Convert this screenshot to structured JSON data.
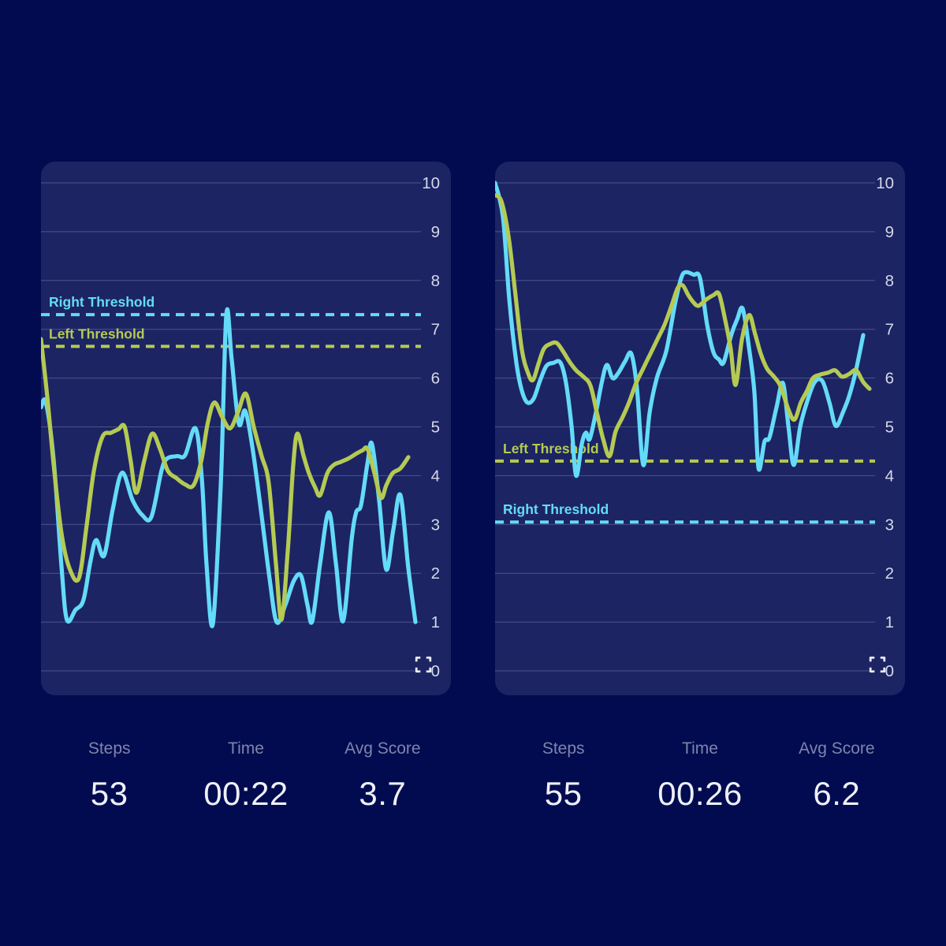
{
  "colors": {
    "page_bg": "#020b50",
    "panel_bg": "#1c2464",
    "grid_line": "rgba(173,181,219,0.33)",
    "tick_label": "#d5d8e8",
    "cyan": "#64dbf8",
    "green": "#b5ca52",
    "stat_label": "#7e85ab",
    "stat_value": "#eef0f7",
    "icon": "#e9ebf4"
  },
  "icons": {
    "bottom_right_of_each_chart": "expand-fullscreen-icon"
  },
  "chart_data": [
    {
      "type": "line",
      "title": "",
      "xlabel": "",
      "ylabel": "",
      "ylim": [
        0,
        10
      ],
      "yticks": [
        0,
        1,
        2,
        3,
        4,
        5,
        6,
        7,
        8,
        9,
        10
      ],
      "grid": true,
      "legend_position": "none",
      "thresholds": [
        {
          "label": "Right Threshold",
          "value": 7.3,
          "color": "#64dbf8"
        },
        {
          "label": "Left Threshold",
          "value": 6.65,
          "color": "#b5ca52"
        }
      ],
      "series": [
        {
          "id": "right",
          "color": "#64dbf8",
          "points": [
            [
              0,
              5.4
            ],
            [
              0.013,
              5.5
            ],
            [
              0.034,
              4.3
            ],
            [
              0.055,
              2.1
            ],
            [
              0.069,
              1.05
            ],
            [
              0.092,
              1.25
            ],
            [
              0.113,
              1.45
            ],
            [
              0.132,
              2.25
            ],
            [
              0.147,
              2.68
            ],
            [
              0.168,
              2.36
            ],
            [
              0.191,
              3.3
            ],
            [
              0.216,
              4.06
            ],
            [
              0.244,
              3.5
            ],
            [
              0.269,
              3.2
            ],
            [
              0.294,
              3.15
            ],
            [
              0.321,
              4.1
            ],
            [
              0.336,
              4.35
            ],
            [
              0.363,
              4.4
            ],
            [
              0.384,
              4.42
            ],
            [
              0.412,
              4.97
            ],
            [
              0.429,
              3.9
            ],
            [
              0.441,
              2.2
            ],
            [
              0.458,
              0.96
            ],
            [
              0.479,
              3.8
            ],
            [
              0.494,
              7.3
            ],
            [
              0.508,
              6.4
            ],
            [
              0.527,
              5.07
            ],
            [
              0.544,
              5.33
            ],
            [
              0.563,
              4.6
            ],
            [
              0.586,
              3.3
            ],
            [
              0.609,
              1.9
            ],
            [
              0.628,
              1.0
            ],
            [
              0.651,
              1.35
            ],
            [
              0.674,
              1.85
            ],
            [
              0.693,
              1.95
            ],
            [
              0.71,
              1.35
            ],
            [
              0.723,
              1.02
            ],
            [
              0.744,
              2.2
            ],
            [
              0.767,
              3.25
            ],
            [
              0.786,
              2.2
            ],
            [
              0.805,
              1.02
            ],
            [
              0.828,
              2.7
            ],
            [
              0.84,
              3.25
            ],
            [
              0.853,
              3.4
            ],
            [
              0.87,
              4.25
            ],
            [
              0.882,
              4.65
            ],
            [
              0.901,
              3.5
            ],
            [
              0.92,
              2.08
            ],
            [
              0.939,
              2.9
            ],
            [
              0.958,
              3.6
            ],
            [
              0.979,
              2.1
            ],
            [
              0.998,
              1.0
            ]
          ]
        },
        {
          "id": "left",
          "color": "#b5ca52",
          "points": [
            [
              0,
              6.8
            ],
            [
              0.017,
              5.6
            ],
            [
              0.034,
              4.2
            ],
            [
              0.055,
              2.8
            ],
            [
              0.076,
              2.1
            ],
            [
              0.101,
              1.9
            ],
            [
              0.122,
              3.0
            ],
            [
              0.141,
              4.1
            ],
            [
              0.164,
              4.8
            ],
            [
              0.187,
              4.88
            ],
            [
              0.206,
              4.95
            ],
            [
              0.223,
              5.0
            ],
            [
              0.239,
              4.3
            ],
            [
              0.254,
              3.65
            ],
            [
              0.275,
              4.3
            ],
            [
              0.296,
              4.86
            ],
            [
              0.317,
              4.55
            ],
            [
              0.338,
              4.1
            ],
            [
              0.361,
              3.95
            ],
            [
              0.384,
              3.82
            ],
            [
              0.406,
              3.8
            ],
            [
              0.427,
              4.3
            ],
            [
              0.445,
              5.1
            ],
            [
              0.462,
              5.5
            ],
            [
              0.483,
              5.2
            ],
            [
              0.504,
              4.97
            ],
            [
              0.525,
              5.3
            ],
            [
              0.546,
              5.68
            ],
            [
              0.567,
              5.0
            ],
            [
              0.588,
              4.4
            ],
            [
              0.607,
              3.85
            ],
            [
              0.626,
              2.2
            ],
            [
              0.641,
              1.05
            ],
            [
              0.658,
              2.5
            ],
            [
              0.672,
              4.2
            ],
            [
              0.683,
              4.86
            ],
            [
              0.7,
              4.4
            ],
            [
              0.714,
              4.05
            ],
            [
              0.731,
              3.75
            ],
            [
              0.744,
              3.6
            ],
            [
              0.763,
              4.05
            ],
            [
              0.78,
              4.22
            ],
            [
              0.798,
              4.28
            ],
            [
              0.819,
              4.35
            ],
            [
              0.84,
              4.45
            ],
            [
              0.857,
              4.52
            ],
            [
              0.87,
              4.55
            ],
            [
              0.887,
              4.1
            ],
            [
              0.906,
              3.55
            ],
            [
              0.92,
              3.8
            ],
            [
              0.937,
              4.05
            ],
            [
              0.958,
              4.15
            ],
            [
              0.979,
              4.38
            ]
          ]
        }
      ],
      "stats": [
        {
          "label": "Steps",
          "value": "53"
        },
        {
          "label": "Time",
          "value": "00:22"
        },
        {
          "label": "Avg Score",
          "value": "3.7"
        }
      ]
    },
    {
      "type": "line",
      "title": "",
      "xlabel": "",
      "ylabel": "",
      "ylim": [
        0,
        10
      ],
      "yticks": [
        0,
        1,
        2,
        3,
        4,
        5,
        6,
        7,
        8,
        9,
        10
      ],
      "grid": true,
      "legend_position": "none",
      "thresholds": [
        {
          "label": "Left Threshold",
          "value": 4.3,
          "color": "#b5ca52"
        },
        {
          "label": "Right Threshold",
          "value": 3.05,
          "color": "#64dbf8"
        }
      ],
      "series": [
        {
          "id": "right",
          "color": "#64dbf8",
          "points": [
            [
              0,
              10.0
            ],
            [
              0.021,
              9.3
            ],
            [
              0.038,
              7.6
            ],
            [
              0.057,
              6.3
            ],
            [
              0.071,
              5.75
            ],
            [
              0.086,
              5.5
            ],
            [
              0.103,
              5.58
            ],
            [
              0.12,
              5.95
            ],
            [
              0.137,
              6.25
            ],
            [
              0.155,
              6.31
            ],
            [
              0.174,
              6.32
            ],
            [
              0.189,
              5.9
            ],
            [
              0.204,
              5.0
            ],
            [
              0.216,
              4.0
            ],
            [
              0.231,
              4.65
            ],
            [
              0.242,
              4.88
            ],
            [
              0.252,
              4.75
            ],
            [
              0.269,
              5.3
            ],
            [
              0.284,
              5.9
            ],
            [
              0.298,
              6.27
            ],
            [
              0.313,
              6.0
            ],
            [
              0.328,
              6.1
            ],
            [
              0.347,
              6.35
            ],
            [
              0.363,
              6.5
            ],
            [
              0.378,
              5.8
            ],
            [
              0.395,
              4.22
            ],
            [
              0.412,
              5.3
            ],
            [
              0.431,
              6.0
            ],
            [
              0.456,
              6.55
            ],
            [
              0.479,
              7.5
            ],
            [
              0.496,
              8.05
            ],
            [
              0.508,
              8.17
            ],
            [
              0.529,
              8.12
            ],
            [
              0.546,
              8.05
            ],
            [
              0.565,
              7.1
            ],
            [
              0.582,
              6.53
            ],
            [
              0.597,
              6.38
            ],
            [
              0.609,
              6.32
            ],
            [
              0.63,
              6.9
            ],
            [
              0.645,
              7.2
            ],
            [
              0.66,
              7.42
            ],
            [
              0.677,
              6.6
            ],
            [
              0.691,
              5.72
            ],
            [
              0.702,
              4.15
            ],
            [
              0.718,
              4.7
            ],
            [
              0.731,
              4.78
            ],
            [
              0.75,
              5.4
            ],
            [
              0.767,
              5.9
            ],
            [
              0.782,
              5.0
            ],
            [
              0.796,
              4.22
            ],
            [
              0.813,
              5.0
            ],
            [
              0.83,
              5.48
            ],
            [
              0.851,
              5.91
            ],
            [
              0.872,
              5.94
            ],
            [
              0.891,
              5.5
            ],
            [
              0.908,
              5.02
            ],
            [
              0.927,
              5.3
            ],
            [
              0.943,
              5.62
            ],
            [
              0.96,
              6.1
            ],
            [
              0.981,
              6.88
            ]
          ]
        },
        {
          "id": "left",
          "color": "#b5ca52",
          "points": [
            [
              0,
              9.75
            ],
            [
              0.017,
              9.62
            ],
            [
              0.036,
              8.9
            ],
            [
              0.053,
              7.8
            ],
            [
              0.071,
              6.6
            ],
            [
              0.088,
              6.1
            ],
            [
              0.101,
              5.96
            ],
            [
              0.116,
              6.3
            ],
            [
              0.13,
              6.6
            ],
            [
              0.147,
              6.7
            ],
            [
              0.164,
              6.72
            ],
            [
              0.181,
              6.55
            ],
            [
              0.197,
              6.35
            ],
            [
              0.216,
              6.16
            ],
            [
              0.235,
              6.03
            ],
            [
              0.254,
              5.85
            ],
            [
              0.271,
              5.3
            ],
            [
              0.288,
              4.75
            ],
            [
              0.305,
              4.4
            ],
            [
              0.321,
              4.9
            ],
            [
              0.34,
              5.2
            ],
            [
              0.357,
              5.5
            ],
            [
              0.376,
              5.9
            ],
            [
              0.395,
              6.2
            ],
            [
              0.414,
              6.5
            ],
            [
              0.433,
              6.8
            ],
            [
              0.452,
              7.1
            ],
            [
              0.471,
              7.5
            ],
            [
              0.487,
              7.85
            ],
            [
              0.5,
              7.9
            ],
            [
              0.515,
              7.7
            ],
            [
              0.529,
              7.55
            ],
            [
              0.542,
              7.48
            ],
            [
              0.561,
              7.6
            ],
            [
              0.582,
              7.7
            ],
            [
              0.597,
              7.72
            ],
            [
              0.613,
              7.2
            ],
            [
              0.628,
              6.6
            ],
            [
              0.641,
              5.86
            ],
            [
              0.658,
              6.8
            ],
            [
              0.677,
              7.29
            ],
            [
              0.693,
              6.9
            ],
            [
              0.708,
              6.5
            ],
            [
              0.725,
              6.19
            ],
            [
              0.742,
              6.04
            ],
            [
              0.761,
              5.83
            ],
            [
              0.782,
              5.35
            ],
            [
              0.798,
              5.15
            ],
            [
              0.815,
              5.5
            ],
            [
              0.832,
              5.75
            ],
            [
              0.847,
              6.0
            ],
            [
              0.866,
              6.07
            ],
            [
              0.887,
              6.11
            ],
            [
              0.906,
              6.16
            ],
            [
              0.924,
              6.03
            ],
            [
              0.943,
              6.08
            ],
            [
              0.962,
              6.16
            ],
            [
              0.981,
              5.92
            ],
            [
              0.998,
              5.78
            ]
          ]
        }
      ],
      "stats": [
        {
          "label": "Steps",
          "value": "55"
        },
        {
          "label": "Time",
          "value": "00:26"
        },
        {
          "label": "Avg Score",
          "value": "6.2"
        }
      ]
    }
  ]
}
